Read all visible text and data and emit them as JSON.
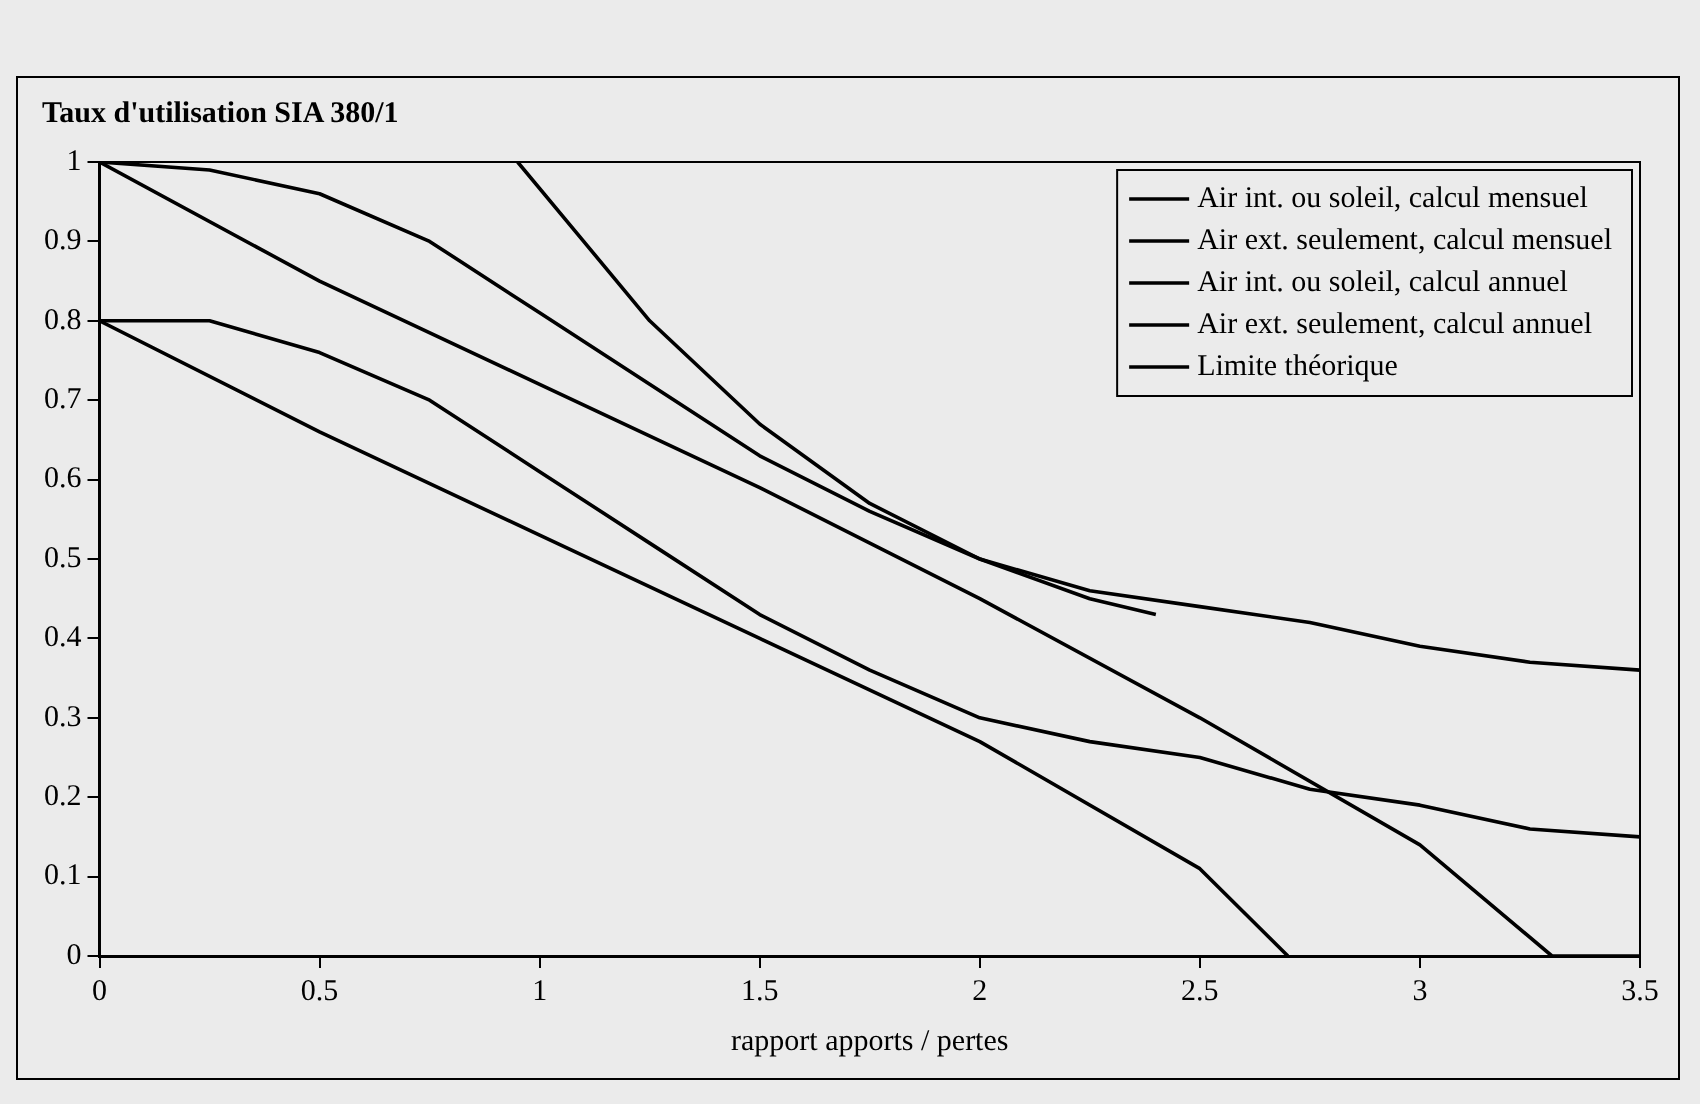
{
  "chart_data": {
    "type": "line",
    "title": "Taux d'utilisation SIA 380/1",
    "xlabel": "rapport apports / pertes",
    "xlim": [
      0,
      3.5
    ],
    "xticks": [
      0,
      0.5,
      1,
      1.5,
      2,
      2.5,
      3,
      3.5
    ],
    "ylim": [
      0,
      1
    ],
    "yticks": [
      0,
      0.1,
      0.2,
      0.3,
      0.4,
      0.5,
      0.6,
      0.7,
      0.8,
      0.9,
      1
    ],
    "grid": false,
    "legend": "top right",
    "marker": "none",
    "line_style": "solid",
    "series": [
      {
        "name": "Air int. ou soleil, calcul mensuel",
        "color": "#000000",
        "x": [
          0,
          0.25,
          0.5,
          0.75,
          1,
          1.25,
          1.5,
          1.75,
          2,
          2.25,
          2.5,
          2.75,
          3,
          3.25,
          3.5
        ],
        "values": [
          1,
          0.99,
          0.96,
          0.9,
          0.81,
          0.72,
          0.63,
          0.56,
          0.5,
          0.46,
          0.44,
          0.42,
          0.39,
          0.37,
          0.36
        ]
      },
      {
        "name": "Air ext. seulement, calcul mensuel",
        "color": "#000000",
        "x": [
          0,
          0.25,
          0.5,
          0.75,
          1,
          1.25,
          1.5,
          1.75,
          2,
          2.25,
          2.5,
          2.75,
          3,
          3.25,
          3.5
        ],
        "values": [
          0.8,
          0.8,
          0.76,
          0.7,
          0.61,
          0.52,
          0.43,
          0.36,
          0.3,
          0.27,
          0.25,
          0.21,
          0.19,
          0.16,
          0.15
        ]
      },
      {
        "name": "Air int. ou soleil, calcul annuel",
        "color": "#000000",
        "x": [
          0,
          0.5,
          1,
          1.5,
          2,
          2.5,
          3,
          3.3,
          3.5
        ],
        "values": [
          1,
          0.85,
          0.72,
          0.59,
          0.45,
          0.3,
          0.14,
          0,
          0
        ]
      },
      {
        "name": "Air ext. seulement, calcul annuel",
        "color": "#000000",
        "x": [
          0,
          0.5,
          1,
          1.5,
          2,
          2.5,
          2.7
        ],
        "values": [
          0.8,
          0.66,
          0.53,
          0.4,
          0.27,
          0.11,
          0
        ]
      },
      {
        "name": "Limite théorique",
        "color": "#000000",
        "x": [
          0.95,
          1.1,
          1.25,
          1.5,
          1.75,
          2,
          2.25,
          2.4
        ],
        "values": [
          1,
          0.9,
          0.8,
          0.67,
          0.57,
          0.5,
          0.45,
          0.43
        ]
      }
    ]
  }
}
